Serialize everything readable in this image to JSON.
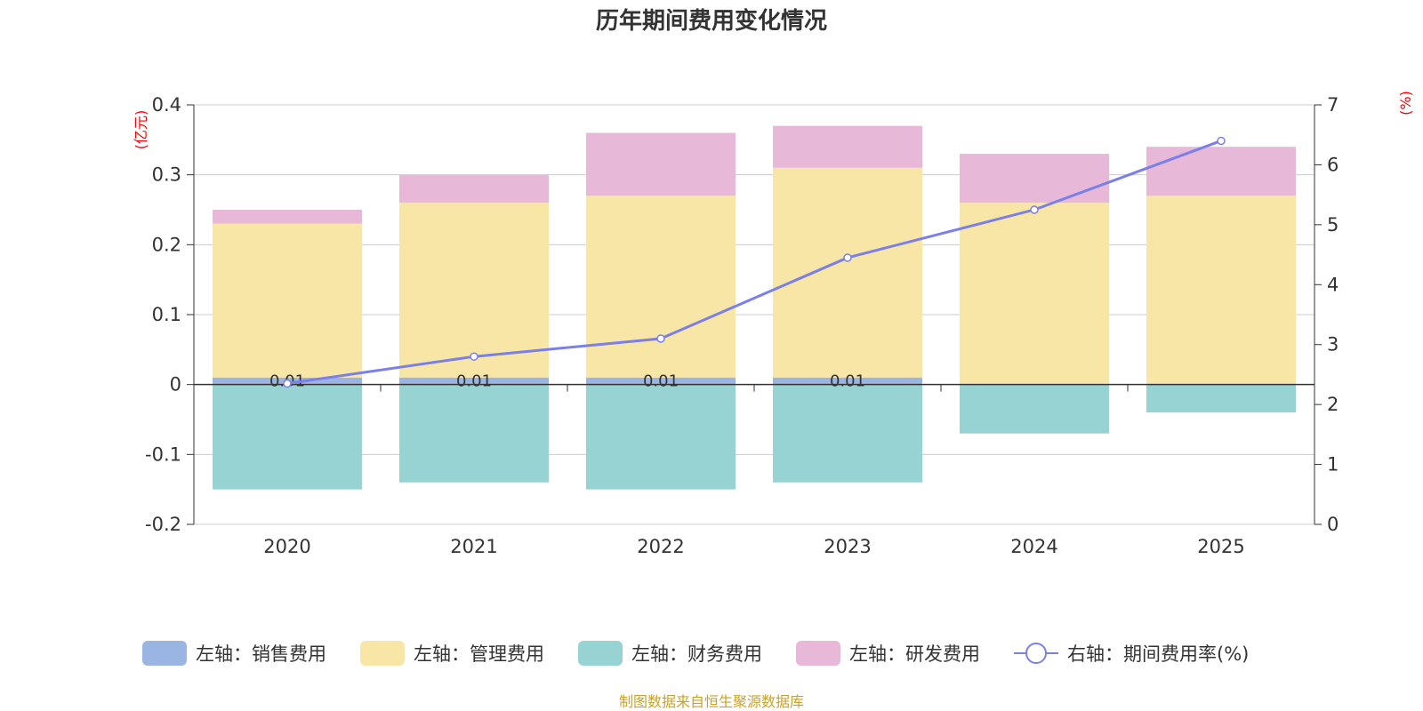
{
  "chart_data": {
    "type": "bar",
    "title": "历年期间费用变化情况",
    "categories": [
      "2020",
      "2021",
      "2022",
      "2023",
      "2024",
      "2025"
    ],
    "y_left": {
      "unit_label": "(亿元)",
      "range": [
        -0.2,
        0.4
      ],
      "ticks": [
        -0.2,
        -0.1,
        0,
        0.1,
        0.2,
        0.3,
        0.4
      ],
      "tick_labels": [
        "-0.2",
        "-0.1",
        "0",
        "0.1",
        "0.2",
        "0.3",
        "0.4"
      ]
    },
    "y_right": {
      "unit_label": "(%)",
      "range": [
        0,
        7
      ],
      "ticks": [
        0,
        1,
        2,
        3,
        4,
        5,
        6,
        7
      ],
      "tick_labels": [
        "0",
        "1",
        "2",
        "3",
        "4",
        "5",
        "6",
        "7"
      ]
    },
    "series": [
      {
        "name": "左轴：销售费用",
        "type": "bar",
        "color": "#9ab5e1",
        "values": [
          0.01,
          0.01,
          0.01,
          0.01,
          0,
          0
        ],
        "labels": [
          "0.01",
          "0.01",
          "0.01",
          "0.01",
          "",
          ""
        ]
      },
      {
        "name": "左轴：管理费用",
        "type": "bar",
        "color": "#f8e6a6",
        "values": [
          0.22,
          0.25,
          0.26,
          0.3,
          0.26,
          0.27
        ]
      },
      {
        "name": "左轴：财务费用",
        "type": "bar",
        "color": "#98d3d4",
        "values": [
          -0.15,
          -0.14,
          -0.15,
          -0.14,
          -0.07,
          -0.04
        ]
      },
      {
        "name": "左轴：研发费用",
        "type": "bar",
        "color": "#e8b8d9",
        "values": [
          0.02,
          0.04,
          0.09,
          0.06,
          0.07,
          0.07
        ]
      },
      {
        "name": "右轴：期间费用率(%)",
        "type": "line",
        "axis": "right",
        "color": "#7b7fe8",
        "values": [
          2.35,
          2.8,
          3.1,
          4.45,
          5.25,
          6.4
        ]
      }
    ],
    "legend_position": "bottom",
    "grid": true
  },
  "source_note": "制图数据来自恒生聚源数据库",
  "colors": {
    "unit_label": "#ff0000",
    "source": "#c9a227",
    "axis": "#333333",
    "grid": "#cccccc"
  }
}
